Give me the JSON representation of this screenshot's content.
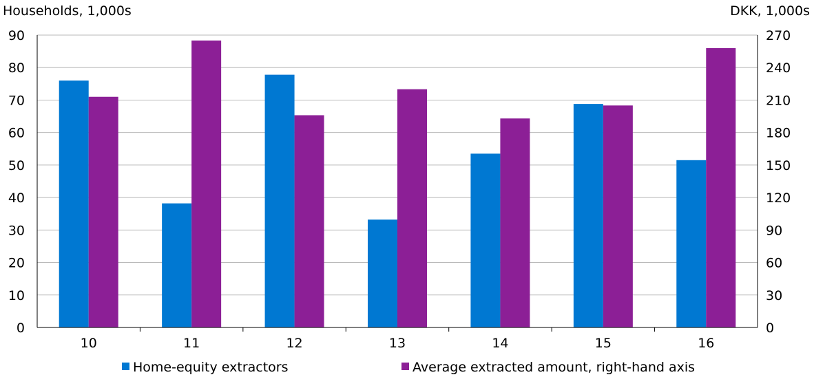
{
  "chart_data": {
    "type": "bar",
    "title": "",
    "ylabel_left": "Households, 1,000s",
    "ylabel_right": "DKK, 1,000s",
    "categories": [
      "10",
      "11",
      "12",
      "13",
      "14",
      "15",
      "16"
    ],
    "ylim_left": [
      0,
      90
    ],
    "ylim_right": [
      0,
      270
    ],
    "yticks_left": [
      0,
      10,
      20,
      30,
      40,
      50,
      60,
      70,
      80,
      90
    ],
    "yticks_right": [
      0,
      30,
      60,
      90,
      120,
      150,
      180,
      210,
      240,
      270
    ],
    "grid": true,
    "legend_position": "bottom",
    "series": [
      {
        "name": "Home-equity extractors",
        "axis": "left",
        "color": "#0078d2",
        "values": [
          76,
          38.2,
          77.8,
          33.2,
          53.5,
          68.8,
          51.5
        ]
      },
      {
        "name": "Average extracted amount, right-hand axis",
        "axis": "right",
        "color": "#8c1f96",
        "values": [
          213,
          265,
          196,
          220,
          193,
          205,
          258
        ]
      }
    ]
  }
}
